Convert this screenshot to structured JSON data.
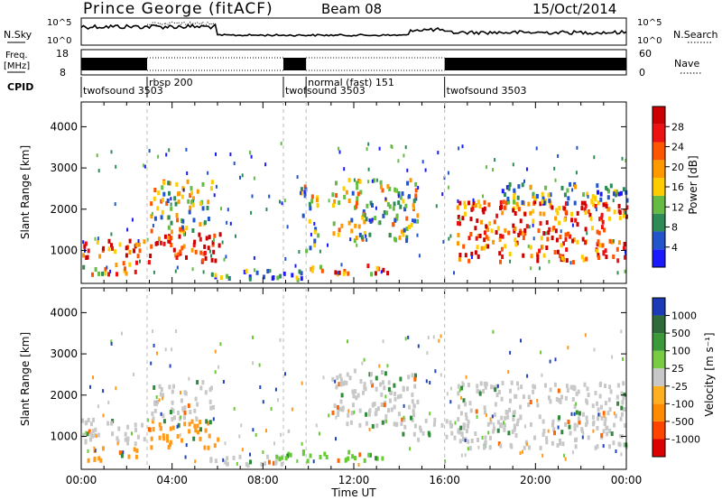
{
  "header": {
    "title": "Prince George (fitACF)",
    "beam": "Beam 08",
    "date": "15/Oct/2014"
  },
  "top_panels": {
    "nsky_label": "N.Sky",
    "nsky_ticks": [
      "10^5",
      "10^0"
    ],
    "nsearch_label": "N.Search",
    "freq_label_1": "Freq.",
    "freq_label_2": "[MHz]",
    "freq_ticks": [
      "18",
      "8"
    ],
    "nave_label": "Nave",
    "nave_ticks": [
      "60",
      "0"
    ],
    "cpid_label": "CPID",
    "cpid_segments": [
      {
        "label": "twofsound 3503",
        "start": 0.0,
        "end": 2.9
      },
      {
        "label": "rbsp 200",
        "start": 2.9,
        "end": 8.9
      },
      {
        "label": "twofsound 3503",
        "start": 8.9,
        "end": 9.9
      },
      {
        "label": "normal (fast) 151",
        "start": 9.9,
        "end": 16.0
      },
      {
        "label": "twofsound 3503",
        "start": 16.0,
        "end": 24.0
      }
    ]
  },
  "chart_data": [
    {
      "type": "heatmap",
      "name": "power-panel",
      "ylabel": "Slant Range [km]",
      "yticks": [
        1000,
        2000,
        3000,
        4000
      ],
      "ylim": [
        200,
        4600
      ],
      "xlim": [
        0,
        24
      ],
      "colorbar": {
        "label": "Power [dB]",
        "ticks": [
          "4",
          "8",
          "12",
          "16",
          "20",
          "24",
          "28"
        ],
        "colors": [
          "#1a1aff",
          "#2255cc",
          "#2e8b57",
          "#66bb44",
          "#ffcc00",
          "#ff9900",
          "#ff5500",
          "#ee1111",
          "#cc0000"
        ]
      },
      "regions": [
        {
          "t0": 0.0,
          "t1": 2.9,
          "r0": 800,
          "r1": 1300,
          "level": 0.75
        },
        {
          "t0": 0.0,
          "t1": 2.6,
          "r0": 400,
          "r1": 700,
          "level": 0.55
        },
        {
          "t0": 2.9,
          "t1": 6.1,
          "r0": 700,
          "r1": 1400,
          "level": 0.9
        },
        {
          "t0": 3.0,
          "t1": 5.8,
          "r0": 1400,
          "r1": 2700,
          "level": 0.45
        },
        {
          "t0": 5.5,
          "t1": 9.8,
          "r0": 250,
          "r1": 500,
          "level": 0.3
        },
        {
          "t0": 9.6,
          "t1": 10.4,
          "r0": 900,
          "r1": 2600,
          "level": 0.4
        },
        {
          "t0": 10.0,
          "t1": 13.5,
          "r0": 380,
          "r1": 620,
          "level": 0.7
        },
        {
          "t0": 11.0,
          "t1": 14.8,
          "r0": 1200,
          "r1": 2700,
          "level": 0.45
        },
        {
          "t0": 16.5,
          "t1": 24.0,
          "r0": 700,
          "r1": 2200,
          "level": 0.75
        },
        {
          "t0": 18.5,
          "t1": 24.0,
          "r0": 2100,
          "r1": 2600,
          "level": 0.35
        }
      ]
    },
    {
      "type": "heatmap",
      "name": "velocity-panel",
      "ylabel": "Slant Range [km]",
      "xlabel": "Time UT",
      "yticks": [
        1000,
        2000,
        3000,
        4000
      ],
      "ylim": [
        200,
        4600
      ],
      "xlim": [
        0,
        24
      ],
      "xticks": [
        "00:00",
        "04:00",
        "08:00",
        "12:00",
        "16:00",
        "20:00",
        "00:00"
      ],
      "colorbar": {
        "label": "Velocity [m s⁻¹]",
        "ticks": [
          "1000",
          "500",
          "100",
          "25",
          "-25",
          "-100",
          "-500",
          "-1000"
        ],
        "colors": [
          "#1a3ab8",
          "#2f6b3a",
          "#3a9a3a",
          "#77cc44",
          "#c8c8c8",
          "#ffb020",
          "#ff8c00",
          "#ff4400",
          "#dd0000"
        ]
      },
      "regions": [
        {
          "t0": 0.0,
          "t1": 2.9,
          "r0": 800,
          "r1": 1400,
          "vel": "gray"
        },
        {
          "t0": 0.0,
          "t1": 2.6,
          "r0": 400,
          "r1": 700,
          "vel": "orange"
        },
        {
          "t0": 2.9,
          "t1": 6.1,
          "r0": 700,
          "r1": 1400,
          "vel": "orange"
        },
        {
          "t0": 3.0,
          "t1": 5.8,
          "r0": 1400,
          "r1": 2300,
          "vel": "gray"
        },
        {
          "t0": 5.5,
          "t1": 9.8,
          "r0": 250,
          "r1": 500,
          "vel": "gray"
        },
        {
          "t0": 8.5,
          "t1": 13.5,
          "r0": 380,
          "r1": 620,
          "vel": "green"
        },
        {
          "t0": 11.0,
          "t1": 14.8,
          "r0": 1200,
          "r1": 2600,
          "vel": "gray"
        },
        {
          "t0": 14.0,
          "t1": 17.0,
          "r0": 900,
          "r1": 1400,
          "vel": "gray"
        },
        {
          "t0": 16.5,
          "t1": 24.0,
          "r0": 700,
          "r1": 2300,
          "vel": "gray"
        }
      ]
    }
  ]
}
